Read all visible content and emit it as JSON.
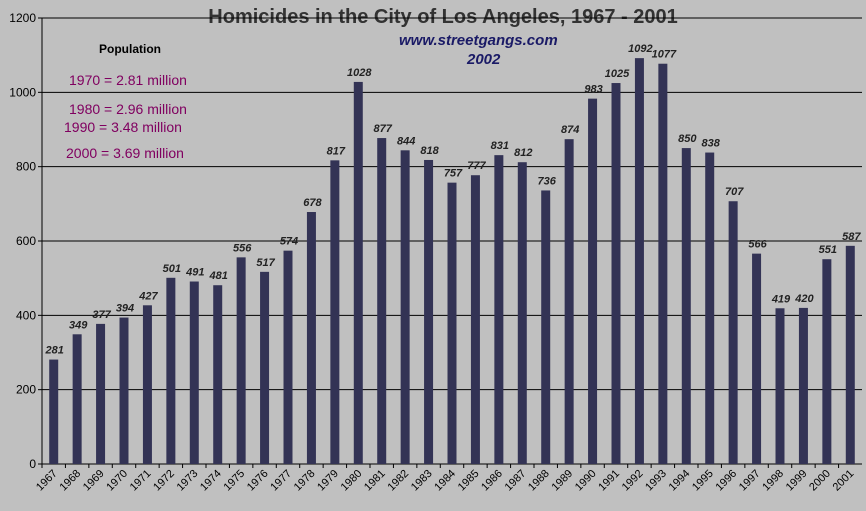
{
  "colors": {
    "background": "#c0c0c0",
    "bar": "#333355",
    "grid": "#000000",
    "population_text": "#800060",
    "source_text": "#1a1a66"
  },
  "population": {
    "header": "Population",
    "lines": [
      "1970 = 2.81 million",
      "1980 = 2.96 million",
      "1990 = 3.48 million",
      "2000 = 3.69 million"
    ]
  },
  "source": {
    "site": "www.streetgangs.com",
    "year": "2002"
  },
  "chart_data": {
    "type": "bar",
    "title": "Homicides in the City of Los Angeles, 1967 - 2001",
    "xlabel": "",
    "ylabel": "",
    "ylim": [
      0,
      1200
    ],
    "yticks": [
      0,
      200,
      400,
      600,
      800,
      1000,
      1200
    ],
    "grid": true,
    "legend": "none",
    "categories": [
      "1967",
      "1968",
      "1969",
      "1970",
      "1971",
      "1972",
      "1973",
      "1974",
      "1975",
      "1976",
      "1977",
      "1978",
      "1979",
      "1980",
      "1981",
      "1982",
      "1983",
      "1984",
      "1985",
      "1986",
      "1987",
      "1988",
      "1989",
      "1990",
      "1991",
      "1992",
      "1993",
      "1994",
      "1995",
      "1996",
      "1997",
      "1998",
      "1999",
      "2000",
      "2001"
    ],
    "values": [
      281,
      349,
      377,
      394,
      427,
      501,
      491,
      481,
      556,
      517,
      574,
      678,
      817,
      1028,
      877,
      844,
      818,
      757,
      777,
      831,
      812,
      736,
      874,
      983,
      1025,
      1092,
      1077,
      850,
      838,
      707,
      566,
      419,
      420,
      551,
      587
    ]
  }
}
